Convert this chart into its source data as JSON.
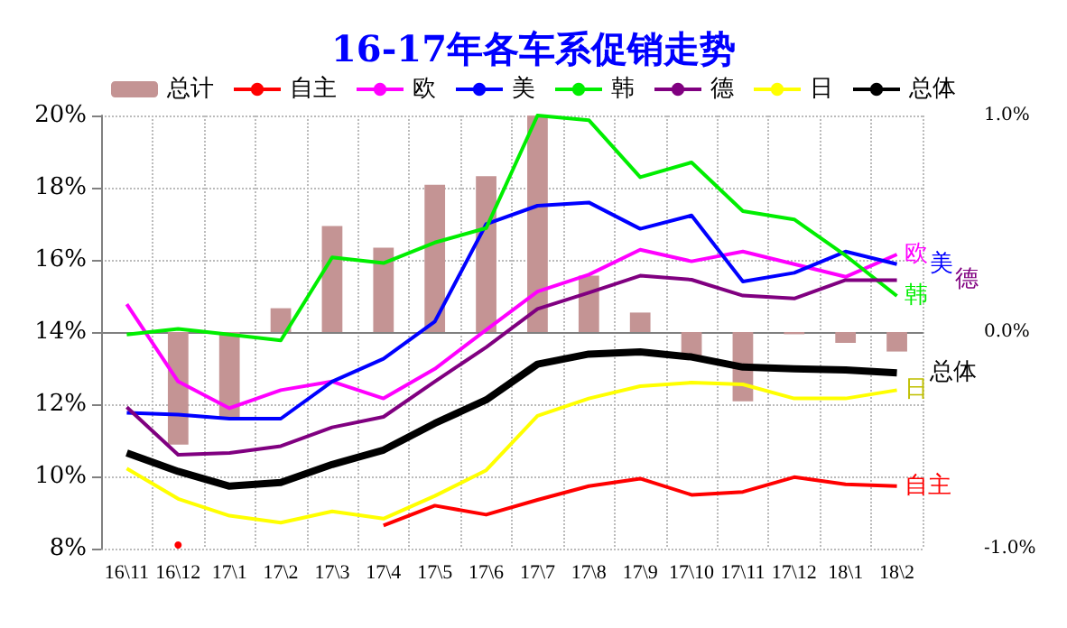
{
  "chart_data": {
    "type": "line",
    "title": "16-17年各车系促销走势",
    "categories": [
      "16\\11",
      "16\\12",
      "17\\1",
      "17\\2",
      "17\\3",
      "17\\4",
      "17\\5",
      "17\\6",
      "17\\7",
      "17\\8",
      "17\\9",
      "17\\10",
      "17\\11",
      "17\\12",
      "18\\1",
      "18\\2"
    ],
    "series": [
      {
        "name": "总计",
        "type": "bar",
        "axis": "y2",
        "color": "#c49494",
        "values": [
          0,
          -0.52,
          -0.4,
          0.11,
          0.49,
          0.39,
          0.68,
          0.72,
          1.0,
          0.26,
          0.09,
          -0.11,
          -0.32,
          -0.01,
          -0.05,
          -0.09
        ]
      },
      {
        "name": "自主",
        "color": "#ff0000",
        "values": [
          null,
          8.1,
          null,
          null,
          null,
          8.64,
          9.19,
          8.94,
          9.35,
          9.73,
          9.94,
          9.49,
          9.57,
          9.98,
          9.78,
          9.73
        ]
      },
      {
        "name": "欧",
        "color": "#ff00ff",
        "values": [
          14.77,
          12.63,
          11.89,
          12.39,
          12.63,
          12.16,
          12.98,
          14.06,
          15.12,
          15.59,
          16.28,
          15.96,
          16.23,
          15.88,
          15.53,
          16.15
        ]
      },
      {
        "name": "美",
        "color": "#0000ff",
        "values": [
          11.76,
          11.71,
          11.6,
          11.6,
          12.63,
          13.26,
          14.29,
          16.99,
          17.5,
          17.59,
          16.86,
          17.23,
          15.4,
          15.64,
          16.23,
          15.88
        ]
      },
      {
        "name": "韩",
        "color": "#00ee00",
        "values": [
          13.93,
          14.09,
          13.93,
          13.77,
          16.07,
          15.91,
          16.48,
          16.88,
          20.0,
          19.87,
          18.29,
          18.7,
          17.35,
          17.12,
          16.12,
          15.0
        ]
      },
      {
        "name": "德",
        "color": "#800080",
        "values": [
          11.92,
          10.6,
          10.65,
          10.84,
          11.36,
          11.65,
          12.63,
          13.58,
          14.64,
          15.09,
          15.56,
          15.45,
          15.01,
          14.93,
          15.44,
          15.44
        ]
      },
      {
        "name": "日",
        "color": "#ffff00",
        "values": [
          10.22,
          9.38,
          8.91,
          8.72,
          9.03,
          8.83,
          9.46,
          10.17,
          11.68,
          12.16,
          12.5,
          12.6,
          12.55,
          12.16,
          12.16,
          12.39
        ]
      },
      {
        "name": "总体",
        "color": "#000000",
        "values": [
          10.65,
          10.14,
          9.73,
          9.83,
          10.33,
          10.73,
          11.47,
          12.12,
          13.11,
          13.39,
          13.45,
          13.31,
          13.03,
          12.98,
          12.95,
          12.87
        ]
      }
    ],
    "ylim": [
      8,
      20
    ],
    "yticks": [
      {
        "value": 8,
        "label": "8%"
      },
      {
        "value": 10,
        "label": "10%"
      },
      {
        "value": 12,
        "label": "12%"
      },
      {
        "value": 14,
        "label": "14%"
      },
      {
        "value": 16,
        "label": "16%"
      },
      {
        "value": 18,
        "label": "18%"
      },
      {
        "value": 20,
        "label": "20%"
      }
    ],
    "y2lim": [
      -1,
      1
    ],
    "y2ticks": [
      {
        "value": -1,
        "label": "-1.0%"
      },
      {
        "value": 0,
        "label": "0.0%"
      },
      {
        "value": 1,
        "label": "1.0%"
      }
    ],
    "grid": true,
    "legend": "top",
    "marker": "none"
  }
}
